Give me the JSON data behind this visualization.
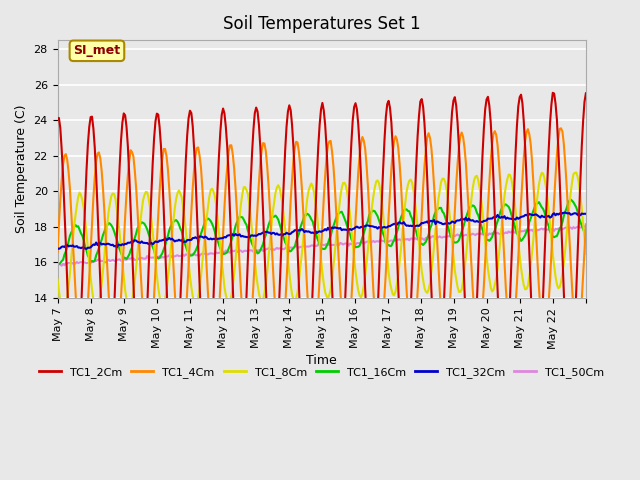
{
  "title": "Soil Temperatures Set 1",
  "xlabel": "Time",
  "ylabel": "Soil Temperature (C)",
  "ylim": [
    14,
    28.5
  ],
  "xlim_days": 16,
  "annotation_text": "SI_met",
  "background_color": "#e8e8e8",
  "plot_bg_color": "#e8e8e8",
  "grid_color": "white",
  "series": {
    "TC1_2Cm": {
      "color": "#cc0000",
      "lw": 1.5
    },
    "TC1_4Cm": {
      "color": "#ff8800",
      "lw": 1.5
    },
    "TC1_8Cm": {
      "color": "#dddd00",
      "lw": 1.5
    },
    "TC1_16Cm": {
      "color": "#00cc00",
      "lw": 1.5
    },
    "TC1_32Cm": {
      "color": "#0000cc",
      "lw": 1.5
    },
    "TC1_50Cm": {
      "color": "#dd88dd",
      "lw": 1.5
    }
  },
  "xtick_positions": [
    0,
    1,
    2,
    3,
    4,
    5,
    6,
    7,
    8,
    9,
    10,
    11,
    12,
    13,
    14,
    15,
    16
  ],
  "xtick_labels": [
    "May 7",
    "May 8",
    "May 9",
    "May 10",
    "May 11",
    "May 12",
    "May 13",
    "May 14",
    "May 15",
    "May 16",
    "May 17",
    "May 18",
    "May 19",
    "May 20",
    "May 21",
    "May 22",
    ""
  ],
  "ytick_positions": [
    14,
    16,
    18,
    20,
    22,
    24,
    26,
    28
  ],
  "legend_labels": [
    "TC1_2Cm",
    "TC1_4Cm",
    "TC1_8Cm",
    "TC1_16Cm",
    "TC1_32Cm",
    "TC1_50Cm"
  ],
  "legend_colors": [
    "#cc0000",
    "#ff8800",
    "#dddd00",
    "#00cc00",
    "#0000cc",
    "#dd88dd"
  ]
}
